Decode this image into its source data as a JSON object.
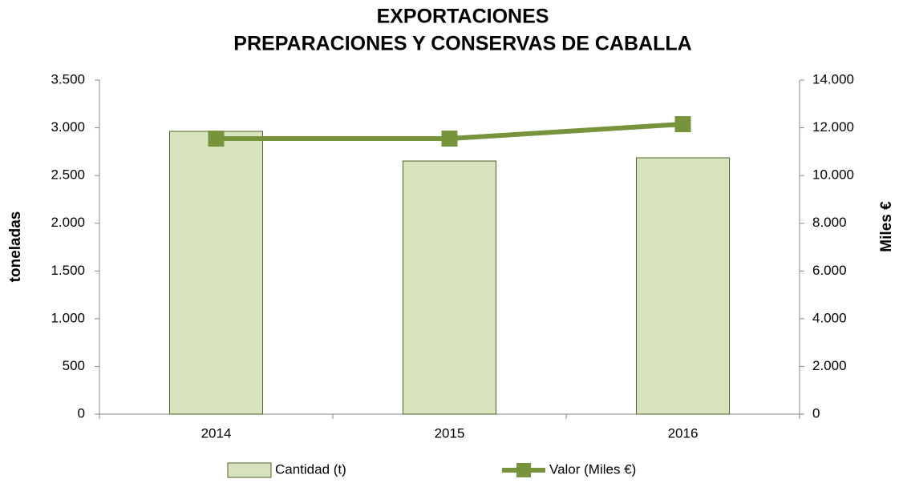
{
  "chart_data": {
    "type": "bar-line",
    "title": [
      "EXPORTACIONES",
      "PREPARACIONES Y CONSERVAS DE CABALLA"
    ],
    "ylabel": "toneladas",
    "y2label": "Miles €",
    "categories": [
      "2014",
      "2015",
      "2016"
    ],
    "series": [
      {
        "name": "Cantidad (t)",
        "type": "bar",
        "color": "#d7e4bd",
        "values": [
          2963,
          2652,
          2686
        ]
      },
      {
        "name": "Valor (Miles €)",
        "type": "line",
        "color": "#77933c",
        "axis": "y2",
        "values": [
          11549,
          11549,
          12153
        ]
      }
    ],
    "ylim": [
      0,
      3500
    ],
    "yticks": [
      0,
      500,
      {
        "value": 1000,
        "label": "1.000"
      },
      {
        "value": 1500,
        "label": "1.500"
      },
      {
        "value": 2000,
        "label": "2.000"
      },
      {
        "value": 2500,
        "label": "2.500"
      },
      {
        "value": 3000,
        "label": "3.000"
      },
      {
        "value": 3500,
        "label": "3.500"
      }
    ],
    "y2lim": [
      0,
      14000
    ],
    "y2ticks": [
      0,
      {
        "value": 2000,
        "label": "2.000"
      },
      {
        "value": 4000,
        "label": "4.000"
      },
      {
        "value": 6000,
        "label": "6.000"
      },
      {
        "value": 8000,
        "label": "8.000"
      },
      {
        "value": 10000,
        "label": "10.000"
      },
      {
        "value": 12000,
        "label": "12.000"
      },
      {
        "value": 14000,
        "label": "14.000"
      }
    ],
    "grid": false,
    "legend": "bottom"
  }
}
